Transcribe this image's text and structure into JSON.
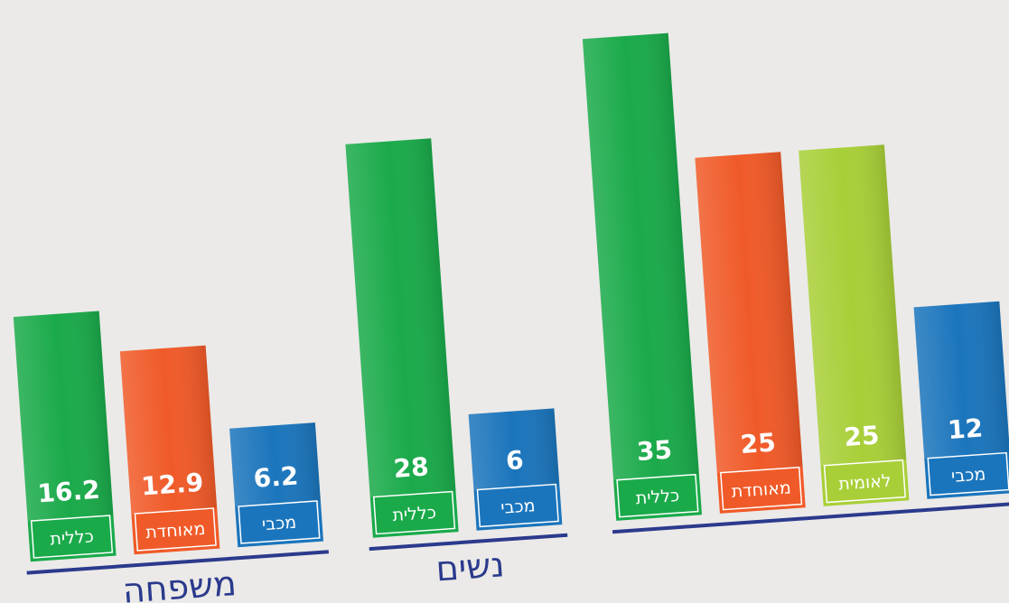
{
  "chart_data": [
    {
      "type": "bar",
      "title": "משפחה",
      "categories": [
        "כללית",
        "מאוחדת",
        "מכבי"
      ],
      "values": [
        16.2,
        12.9,
        6.2
      ],
      "colors": [
        "#1aaa4a",
        "#f05a28",
        "#1b75bc"
      ]
    },
    {
      "type": "bar",
      "title": "נשים",
      "categories": [
        "כללית",
        "מכבי"
      ],
      "values": [
        28,
        6
      ],
      "colors": [
        "#1aaa4a",
        "#1b75bc"
      ]
    },
    {
      "type": "bar",
      "categories": [
        "כללית",
        "מאוחדת",
        "לאומית",
        "מכבי"
      ],
      "values": [
        35,
        25,
        25,
        12
      ],
      "colors": [
        "#1aaa4a",
        "#f05a28",
        "#a8cf38",
        "#1b75bc"
      ]
    }
  ]
}
